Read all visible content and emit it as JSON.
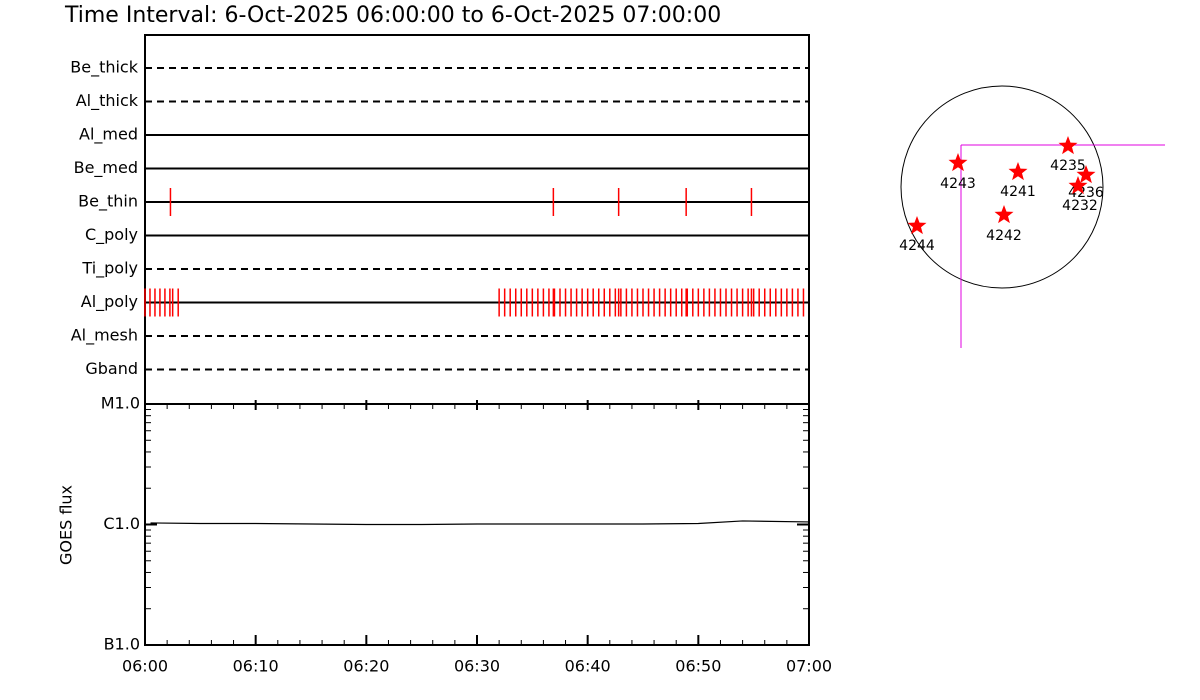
{
  "chart_data": [
    {
      "type": "timeline",
      "title": "Time Interval:  6-Oct-2025 06:00:00 to  6-Oct-2025 07:00:00",
      "categories": [
        "Be_thick",
        "Al_thick",
        "Al_med",
        "Be_med",
        "Be_thin",
        "C_poly",
        "Ti_poly",
        "Al_poly",
        "Al_mesh",
        "Gband"
      ],
      "dashed": [
        true,
        true,
        false,
        false,
        false,
        false,
        true,
        false,
        true,
        true
      ],
      "event_color": "#ff0000",
      "xlim": [
        0,
        60
      ],
      "events": [
        [],
        [],
        [],
        [],
        [
          2.3,
          36.9,
          42.8,
          48.9,
          54.8
        ],
        [],
        [],
        [
          0,
          0.45,
          0.9,
          1.35,
          1.8,
          2.25,
          2.5,
          3.0,
          32,
          32.5,
          33,
          33.5,
          34,
          34.5,
          35,
          35.5,
          36,
          36.5,
          36.9,
          37,
          37.5,
          38,
          38.5,
          39,
          39.5,
          40,
          40.5,
          41,
          41.5,
          42,
          42.5,
          42.8,
          43,
          43.5,
          44,
          44.5,
          45,
          45.5,
          46,
          46.5,
          47,
          47.5,
          48,
          48.5,
          48.9,
          49,
          49.5,
          50,
          50.5,
          51,
          51.5,
          52,
          52.5,
          53,
          53.5,
          54,
          54.5,
          54.8,
          55,
          55.5,
          56,
          56.5,
          57,
          57.5,
          58,
          58.5,
          59,
          59.5
        ],
        [],
        []
      ]
    },
    {
      "type": "line",
      "ylabel": "GOES flux",
      "log": true,
      "color": "#000000",
      "xlim": [
        0,
        60
      ],
      "xticks": [
        {
          "value": 0,
          "label": "06:00"
        },
        {
          "value": 10,
          "label": "06:10"
        },
        {
          "value": 20,
          "label": "06:20"
        },
        {
          "value": 30,
          "label": "06:30"
        },
        {
          "value": 40,
          "label": "06:40"
        },
        {
          "value": 50,
          "label": "06:50"
        },
        {
          "value": 60,
          "label": "07:00"
        }
      ],
      "minor_xticks": [
        2,
        4,
        6,
        8,
        12,
        14,
        16,
        18,
        22,
        24,
        26,
        28,
        32,
        34,
        36,
        38,
        42,
        44,
        46,
        48,
        52,
        54,
        56,
        58
      ],
      "ylim": [
        1e-07,
        1e-05
      ],
      "yticks": [
        {
          "value": 1e-07,
          "label": "B1.0"
        },
        {
          "value": 1e-06,
          "label": "C1.0"
        },
        {
          "value": 1e-05,
          "label": "M1.0"
        }
      ],
      "minor_yticks": [
        2e-07,
        3e-07,
        4e-07,
        5e-07,
        6e-07,
        7e-07,
        8e-07,
        9e-07,
        2e-06,
        3e-06,
        4e-06,
        5e-06,
        6e-06,
        7e-06,
        8e-06,
        9e-06
      ],
      "x": [
        0.5,
        5,
        10,
        15,
        20,
        25,
        30,
        35,
        40,
        45,
        50,
        54,
        60
      ],
      "values": [
        1.03e-06,
        1.02e-06,
        1.02e-06,
        1.01e-06,
        1e-06,
        1e-06,
        1.01e-06,
        1.01e-06,
        1.01e-06,
        1.01e-06,
        1.02e-06,
        1.07e-06,
        1.05e-06
      ]
    },
    {
      "type": "sun",
      "regions": [
        "4243",
        "4241",
        "4235",
        "4236",
        "4232",
        "4242",
        "4244"
      ]
    }
  ]
}
